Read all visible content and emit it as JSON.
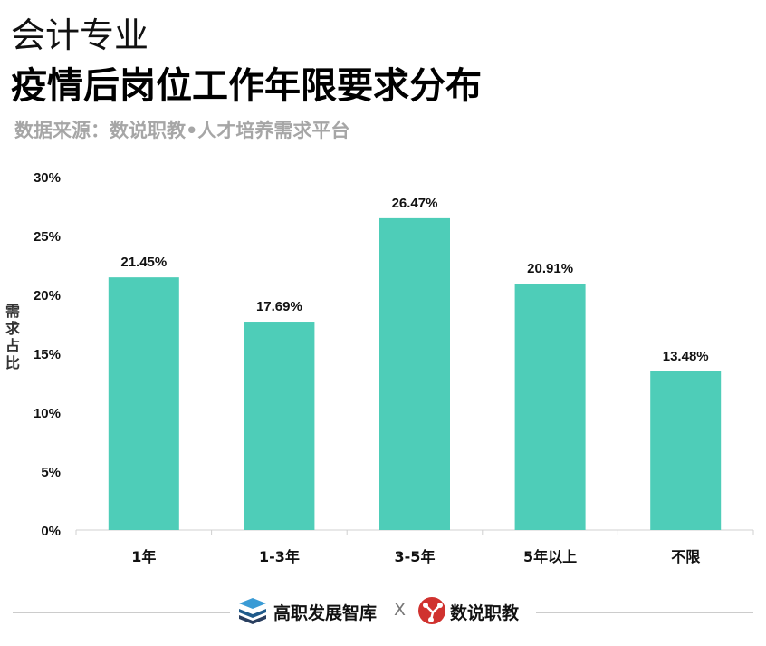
{
  "title_line1": "会计专业",
  "title_line2": "疫情后岗位工作年限要求分布",
  "source": "数据来源：数说职教•人才培养需求平台",
  "footer": {
    "brand1": "高职发展智库",
    "separator": "X",
    "brand2": "数说职教"
  },
  "colors": {
    "bar": "#4ecdb8",
    "brand2_logo": "#d0322f",
    "brand1_logo": "#1f5a8a"
  },
  "chart_data": {
    "type": "bar",
    "categories": [
      "1年",
      "1-3年",
      "3-5年",
      "5年以上",
      "不限"
    ],
    "values": [
      21.45,
      17.69,
      26.47,
      20.91,
      13.48
    ],
    "data_labels": [
      "21.45%",
      "17.69%",
      "26.47%",
      "20.91%",
      "13.48%"
    ],
    "ylabel": "需求占比",
    "ylim": [
      0,
      30
    ],
    "yticks": [
      "0%",
      "5%",
      "10%",
      "15%",
      "20%",
      "25%",
      "30%"
    ],
    "grid": false
  }
}
